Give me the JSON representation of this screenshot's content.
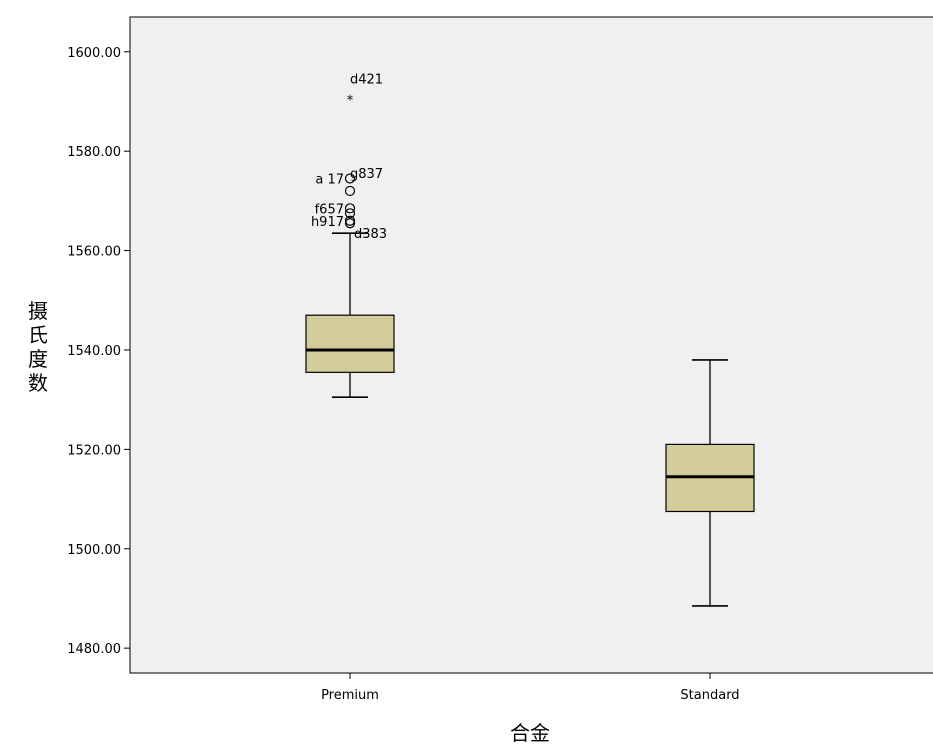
{
  "chart_data": {
    "type": "boxplot",
    "xlabel": "合金",
    "ylabel": "摄氏度数",
    "ylim": [
      1475,
      1607
    ],
    "yticks": [
      1480,
      1500,
      1520,
      1540,
      1560,
      1580,
      1600
    ],
    "ytick_labels": [
      "1480.00",
      "1500.00",
      "1520.00",
      "1540.00",
      "1560.00",
      "1580.00",
      "1600.00"
    ],
    "grid": false,
    "colors": {
      "plot_bg": "#f0f0f0",
      "box_fill": "#d4cc9a",
      "line": "#000000"
    },
    "categories": [
      "Premium",
      "Standard"
    ],
    "boxes": [
      {
        "category": "Premium",
        "whisker_low": 1530.5,
        "q1": 1535.5,
        "median": 1540.0,
        "q3": 1547.0,
        "whisker_high": 1563.5,
        "outliers": [
          {
            "value": 1591.0,
            "marker": "star",
            "label": "d421",
            "label_side": "right",
            "label_above": true
          },
          {
            "value": 1574.5,
            "marker": "circle",
            "label": "a 17",
            "label_side": "left"
          },
          {
            "value": 1572.0,
            "marker": "circle",
            "label": "g837",
            "label_side": "right",
            "label_above": true
          },
          {
            "value": 1568.5,
            "marker": "circle",
            "label": "f657",
            "label_side": "left"
          },
          {
            "value": 1567.5,
            "marker": "circle",
            "label": "",
            "label_side": "none"
          },
          {
            "value": 1566.0,
            "marker": "circle",
            "label": "h917",
            "label_side": "left"
          },
          {
            "value": 1565.5,
            "marker": "circle",
            "label": "d383",
            "label_side": "right",
            "label_below": true
          }
        ]
      },
      {
        "category": "Standard",
        "whisker_low": 1488.5,
        "q1": 1507.5,
        "median": 1514.5,
        "q3": 1521.0,
        "whisker_high": 1538.0,
        "outliers": []
      }
    ]
  }
}
